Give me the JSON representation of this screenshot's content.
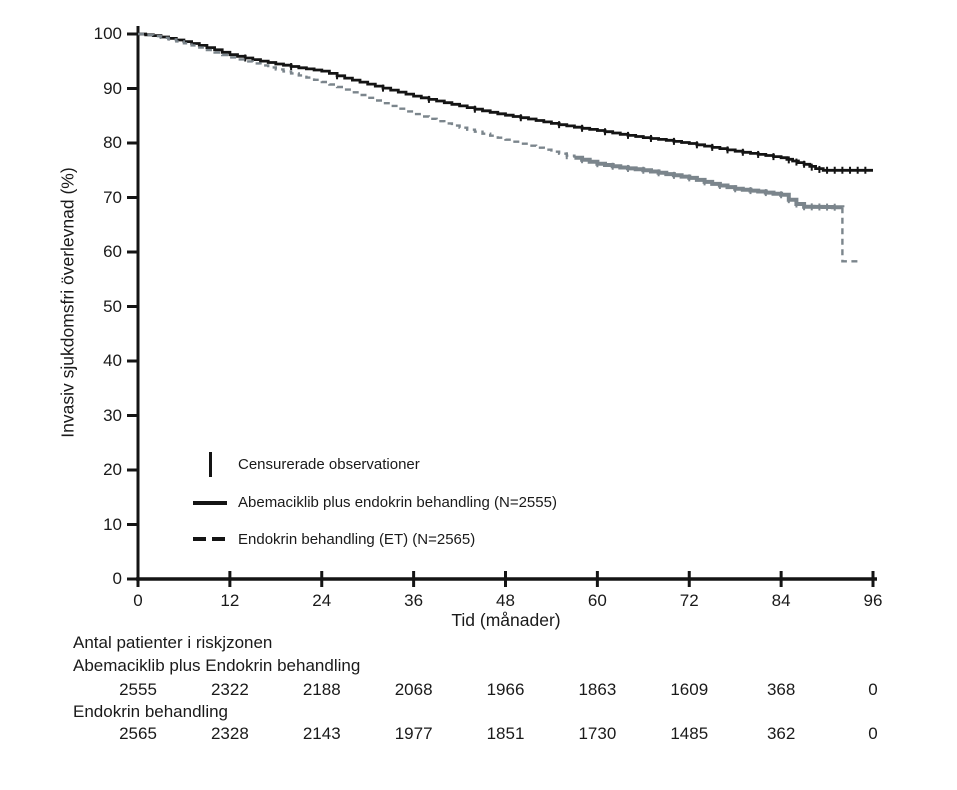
{
  "accent_colors": {
    "curve_black": "#141414",
    "curve_gray": "#7b858c",
    "text": "#1a1a1a"
  },
  "legend": {
    "censor_label": "Censurerade observationer",
    "abemaciclib_label": "Abemaciklib plus endokrin behandling (N=2555)",
    "et_label": "Endokrin behandling (ET) (N=2565)"
  },
  "risk_table": {
    "title": "Antal patienter i riskjzonen",
    "groups": [
      {
        "label": "Abemaciklib plus Endokrin behandling",
        "counts": [
          "2555",
          "2322",
          "2188",
          "2068",
          "1966",
          "1863",
          "1609",
          "368",
          "0"
        ]
      },
      {
        "label": "Endokrin behandling",
        "counts": [
          "2565",
          "2328",
          "2143",
          "1977",
          "1851",
          "1730",
          "1485",
          "362",
          "0"
        ]
      }
    ]
  },
  "chart_data": {
    "type": "line",
    "subtype": "kaplan-meier-step",
    "title": "",
    "xlabel": "Tid (månader)",
    "ylabel": "Invasiv sjukdomsfri överlevnad (%)",
    "xlim": [
      0,
      96
    ],
    "ylim": [
      0,
      100
    ],
    "x_ticks": [
      0,
      12,
      24,
      36,
      48,
      60,
      72,
      84,
      96
    ],
    "y_ticks": [
      0,
      10,
      20,
      30,
      40,
      50,
      60,
      70,
      80,
      90,
      100
    ],
    "grid": false,
    "legend_position": "inside-lower-left",
    "series": [
      {
        "name": "Abemaciklib plus endokrin behandling (N=2555)",
        "color": "#141414",
        "line_style": "solid",
        "line_width": 2.8,
        "points": [
          [
            0,
            100
          ],
          [
            2,
            99.7
          ],
          [
            4,
            99.2
          ],
          [
            6,
            98.6
          ],
          [
            8,
            97.9
          ],
          [
            10,
            97.1
          ],
          [
            12,
            96.2
          ],
          [
            15,
            95.3
          ],
          [
            18,
            94.5
          ],
          [
            21,
            93.8
          ],
          [
            24,
            93.2
          ],
          [
            27,
            91.9
          ],
          [
            30,
            90.8
          ],
          [
            33,
            89.7
          ],
          [
            36,
            88.6
          ],
          [
            39,
            87.7
          ],
          [
            42,
            86.8
          ],
          [
            45,
            85.9
          ],
          [
            48,
            85.1
          ],
          [
            51,
            84.4
          ],
          [
            54,
            83.6
          ],
          [
            57,
            82.9
          ],
          [
            60,
            82.3
          ],
          [
            63,
            81.6
          ],
          [
            66,
            81.0
          ],
          [
            69,
            80.5
          ],
          [
            72,
            79.9
          ],
          [
            75,
            79.2
          ],
          [
            78,
            78.5
          ],
          [
            81,
            77.9
          ],
          [
            84,
            77.3
          ],
          [
            85.5,
            76.7
          ],
          [
            87,
            76.1
          ],
          [
            88.5,
            75.3
          ],
          [
            89.5,
            75.0
          ],
          [
            96,
            75.0
          ]
        ],
        "censor_months": [
          14,
          20,
          26,
          32,
          38,
          44,
          50,
          55,
          58,
          61,
          64,
          67,
          70,
          73,
          75,
          77,
          79,
          81,
          83,
          85,
          86,
          87,
          88,
          89,
          90,
          91,
          92,
          93,
          94,
          95
        ]
      },
      {
        "name": "Endokrin behandling (ET) (N=2565)",
        "color": "#7b858c",
        "line_style": "dashed",
        "line_width": 2.4,
        "points": [
          [
            0,
            100
          ],
          [
            2,
            99.6
          ],
          [
            4,
            99.0
          ],
          [
            6,
            98.3
          ],
          [
            8,
            97.5
          ],
          [
            10,
            96.6
          ],
          [
            12,
            95.7
          ],
          [
            15,
            94.6
          ],
          [
            18,
            93.5
          ],
          [
            21,
            92.4
          ],
          [
            24,
            91.2
          ],
          [
            27,
            89.8
          ],
          [
            30,
            88.3
          ],
          [
            33,
            86.8
          ],
          [
            36,
            85.3
          ],
          [
            39,
            84.0
          ],
          [
            42,
            82.8
          ],
          [
            45,
            81.7
          ],
          [
            48,
            80.6
          ],
          [
            51,
            79.5
          ],
          [
            54,
            78.4
          ],
          [
            57,
            77.3
          ],
          [
            60,
            76.2
          ],
          [
            63,
            75.5
          ],
          [
            66,
            75.0
          ],
          [
            69,
            74.3
          ],
          [
            72,
            73.6
          ],
          [
            75,
            72.5
          ],
          [
            78,
            71.6
          ],
          [
            81,
            71.1
          ],
          [
            84,
            70.5
          ],
          [
            85,
            69.6
          ],
          [
            86,
            68.8
          ],
          [
            87,
            68.3
          ],
          [
            92,
            68.2
          ],
          [
            92,
            58.3
          ],
          [
            94,
            58.3
          ]
        ],
        "censor_months": [
          56,
          58,
          60,
          62,
          64,
          66,
          68,
          70,
          72,
          74,
          76,
          78,
          80,
          82,
          84,
          85,
          86,
          87,
          88,
          89,
          90,
          91
        ],
        "style_breaks": [
          {
            "end_month": 57,
            "dashed": true,
            "width": 2.4
          },
          {
            "end_month": 92,
            "dashed": false,
            "width": 4.0
          },
          {
            "end_month": 94,
            "dashed": true,
            "width": 2.4
          }
        ]
      }
    ]
  }
}
